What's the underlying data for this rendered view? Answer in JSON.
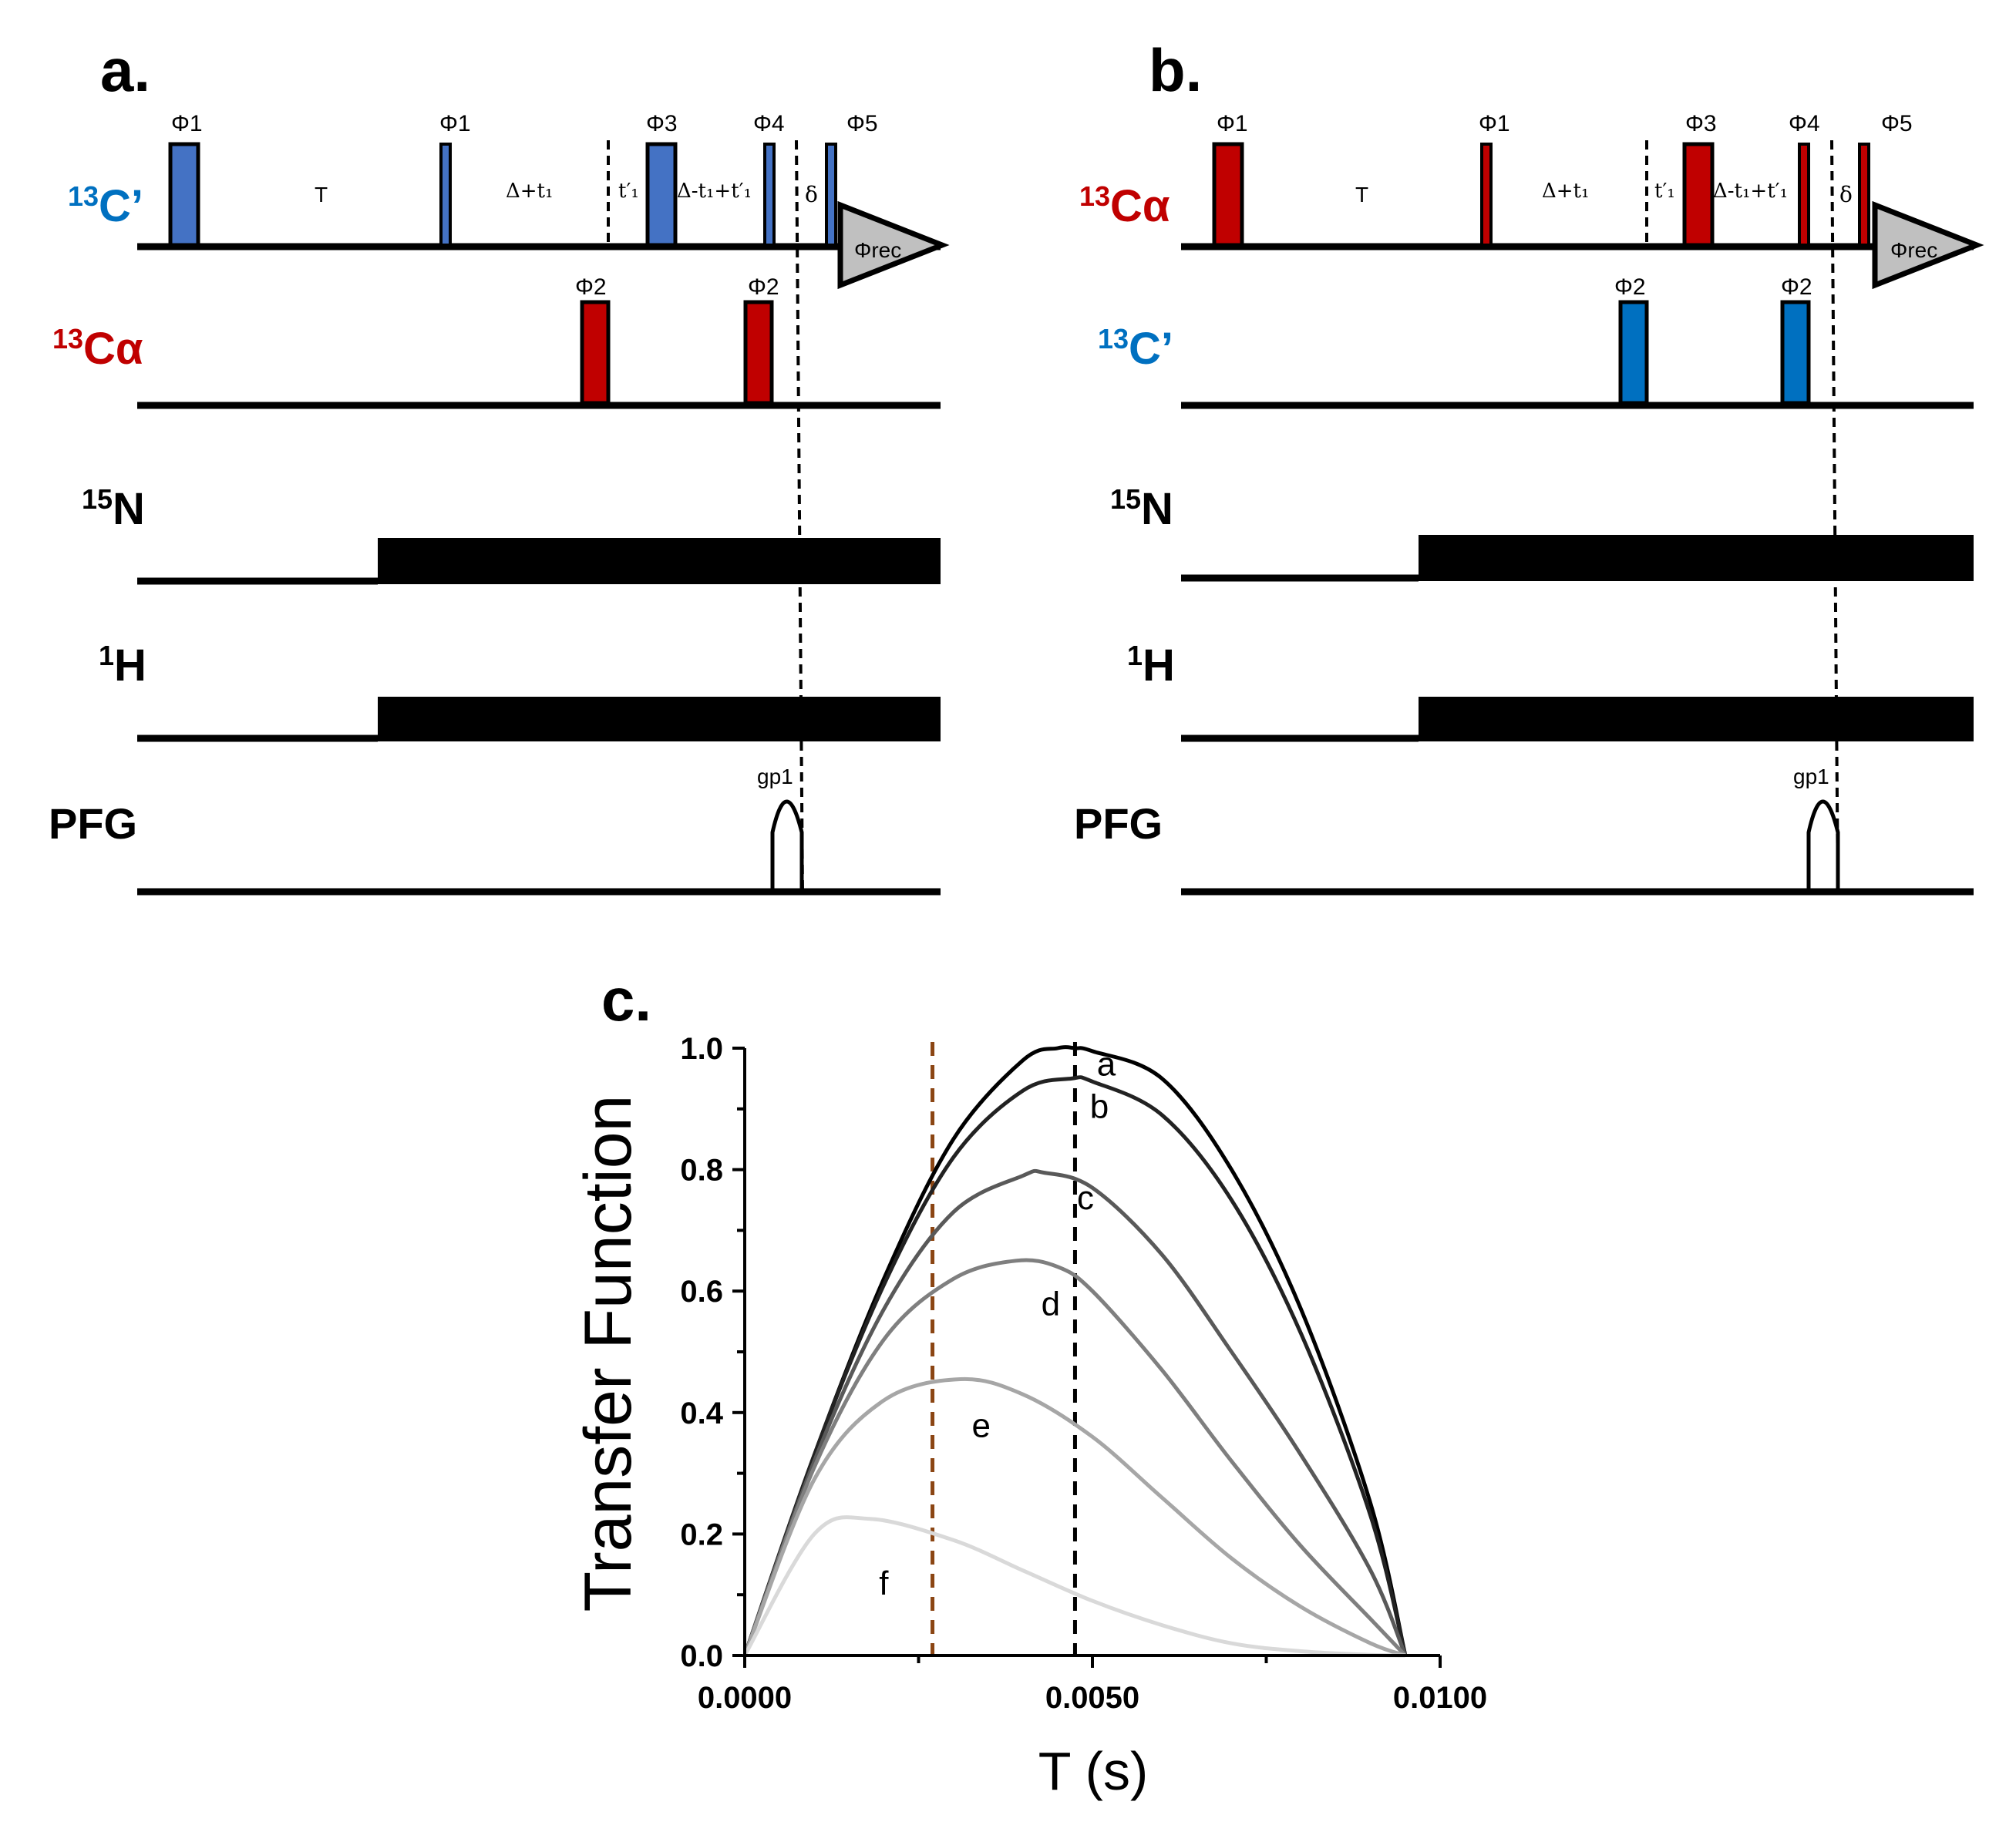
{
  "colors": {
    "blue_pulse": "#4472c4",
    "blue_pulse_b": "#0070c0",
    "red_pulse": "#c00000",
    "blue_text": "#0070c0",
    "red_text": "#c00000",
    "dashed_brown": "#8b4513",
    "receiver_fill": "#c0c0c0"
  },
  "panel_a": {
    "label": "a.",
    "channels": {
      "c13_prime": {
        "sup": "13",
        "base": "C’"
      },
      "c13_alpha": {
        "sup": "13",
        "base": "Cα"
      },
      "n15": {
        "sup": "15",
        "base": "N"
      },
      "h1": {
        "sup": "1",
        "base": "H"
      },
      "pfg": "PFG"
    },
    "phases": {
      "phi1": "Φ1",
      "phi1b": "Φ1",
      "phi3": "Φ3",
      "phi4": "Φ4",
      "phi5": "Φ5",
      "phi2a": "Φ2",
      "phi2b": "Φ2"
    },
    "delays": {
      "T": "T",
      "delta_t1": "Δ+t₁",
      "t1prime": "t′₁",
      "delta_minus": "Δ-t₁+t′₁",
      "small_delta": "δ"
    },
    "receiver": "Φrec",
    "gradient": "gp1"
  },
  "panel_b": {
    "label": "b.",
    "channels": {
      "c13_alpha": {
        "sup": "13",
        "base": "Cα"
      },
      "c13_prime": {
        "sup": "13",
        "base": "C’"
      },
      "n15": {
        "sup": "15",
        "base": "N"
      },
      "h1": {
        "sup": "1",
        "base": "H"
      },
      "pfg": "PFG"
    },
    "phases": {
      "phi1": "Φ1",
      "phi1b": "Φ1",
      "phi3": "Φ3",
      "phi4": "Φ4",
      "phi5": "Φ5",
      "phi2a": "Φ2",
      "phi2b": "Φ2"
    },
    "delays": {
      "T": "T",
      "delta_t1": "Δ+t₁",
      "t1prime": "t′₁",
      "delta_minus": "Δ-t₁+t′₁",
      "small_delta": "δ"
    },
    "receiver": "Φrec",
    "gradient": "gp1"
  },
  "panel_c": {
    "label": "c."
  },
  "chart_data": {
    "type": "line",
    "xlabel": "T (s)",
    "ylabel": "Transfer Function",
    "xlim": [
      0,
      0.01
    ],
    "ylim": [
      0,
      1.0
    ],
    "xticks": [
      "0.0000",
      "0.0050",
      "0.0100"
    ],
    "yticks": [
      "0.0",
      "0.2",
      "0.4",
      "0.6",
      "0.8",
      "1.0"
    ],
    "vlines": [
      {
        "x": 0.0027,
        "style": "dashed",
        "color": "#8b4513"
      },
      {
        "x": 0.00475,
        "style": "dashed",
        "color": "#000000"
      }
    ],
    "series": [
      {
        "name": "a",
        "color": "#000000",
        "x": [
          0,
          0.001,
          0.002,
          0.003,
          0.004,
          0.0045,
          0.00475,
          0.005,
          0.006,
          0.007,
          0.008,
          0.009,
          0.0095
        ],
        "y": [
          0,
          0.33,
          0.62,
          0.85,
          0.98,
          1.0,
          1.0,
          0.995,
          0.95,
          0.8,
          0.57,
          0.25,
          0
        ]
      },
      {
        "name": "b",
        "color": "#222222",
        "x": [
          0,
          0.001,
          0.002,
          0.003,
          0.004,
          0.0047,
          0.005,
          0.006,
          0.007,
          0.008,
          0.009,
          0.0095
        ],
        "y": [
          0,
          0.33,
          0.61,
          0.82,
          0.93,
          0.95,
          0.945,
          0.89,
          0.75,
          0.53,
          0.23,
          0
        ]
      },
      {
        "name": "c",
        "color": "#595959",
        "x": [
          0,
          0.001,
          0.002,
          0.003,
          0.004,
          0.0043,
          0.005,
          0.006,
          0.007,
          0.008,
          0.009,
          0.0095
        ],
        "y": [
          0,
          0.32,
          0.57,
          0.73,
          0.79,
          0.795,
          0.77,
          0.66,
          0.5,
          0.33,
          0.14,
          0
        ]
      },
      {
        "name": "d",
        "color": "#7f7f7f",
        "x": [
          0,
          0.001,
          0.002,
          0.003,
          0.0039,
          0.0045,
          0.005,
          0.006,
          0.007,
          0.008,
          0.009,
          0.0095
        ],
        "y": [
          0,
          0.31,
          0.52,
          0.62,
          0.65,
          0.64,
          0.6,
          0.47,
          0.32,
          0.18,
          0.06,
          0
        ]
      },
      {
        "name": "e",
        "color": "#a6a6a6",
        "x": [
          0,
          0.001,
          0.002,
          0.0031,
          0.004,
          0.005,
          0.006,
          0.007,
          0.008,
          0.009,
          0.0095
        ],
        "y": [
          0,
          0.29,
          0.42,
          0.455,
          0.43,
          0.36,
          0.26,
          0.16,
          0.08,
          0.02,
          0
        ]
      },
      {
        "name": "f",
        "color": "#d9d9d9",
        "x": [
          0,
          0.001,
          0.0018,
          0.003,
          0.004,
          0.005,
          0.006,
          0.007,
          0.008,
          0.009,
          0.0095
        ],
        "y": [
          0,
          0.2,
          0.225,
          0.19,
          0.14,
          0.09,
          0.05,
          0.02,
          0.007,
          0.001,
          0
        ]
      }
    ],
    "annotations": [
      "a",
      "b",
      "c",
      "d",
      "e",
      "f"
    ]
  }
}
